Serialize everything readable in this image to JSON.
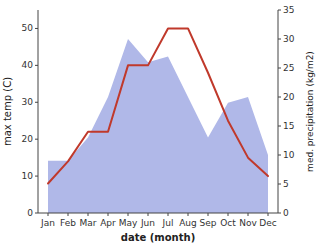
{
  "chart_data": {
    "type": "line",
    "x_label": "date (month)",
    "y_label": "max temp (C)",
    "y2_label": "med. precipitation (kg/m2)",
    "categories": [
      "Jan",
      "Feb",
      "Mar",
      "Apr",
      "May",
      "Jun",
      "Jul",
      "Aug",
      "Sep",
      "Oct",
      "Nov",
      "Dec"
    ],
    "series": [
      {
        "type": "area",
        "axis": "y2",
        "color": "#b0b8e8",
        "values": [
          9,
          9,
          13,
          20,
          30,
          26,
          27,
          20,
          13,
          19,
          20,
          10
        ]
      },
      {
        "type": "line",
        "color": "#c0392b",
        "values": [
          8,
          14,
          22,
          22,
          40,
          40,
          50,
          50,
          38,
          25,
          15,
          10
        ]
      }
    ],
    "ylim": [
      0,
      55
    ],
    "yticks": [
      0,
      10,
      20,
      30,
      40,
      50
    ],
    "y2lim": [
      0,
      35
    ],
    "y2ticks": [
      0,
      5,
      10,
      15,
      20,
      25,
      30,
      35
    ],
    "grid": false
  }
}
